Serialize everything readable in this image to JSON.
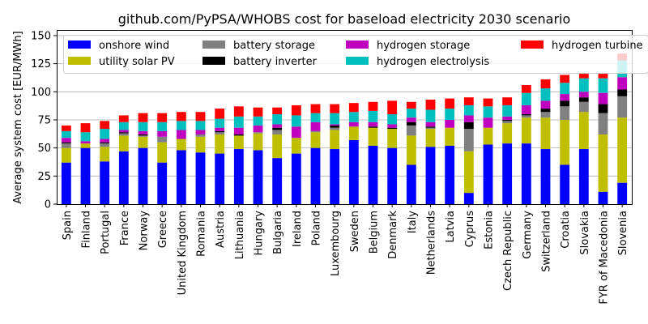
{
  "chart_data": {
    "type": "bar",
    "stacked": true,
    "title": "github.com/PyPSA/WHOBS cost for baseload electricity 2030 scenario",
    "xlabel": "",
    "ylabel": "Average system cost [EUR/MWh]",
    "ylim": [
      0,
      155
    ],
    "yticks": [
      0,
      25,
      50,
      75,
      100,
      125,
      150
    ],
    "grid": "horizontal",
    "legend_position": "top",
    "categories": [
      "Spain",
      "Finland",
      "Portugal",
      "France",
      "Norway",
      "Greece",
      "United Kingdom",
      "Romania",
      "Austria",
      "Lithuania",
      "Hungary",
      "Bulgaria",
      "Ireland",
      "Poland",
      "Luxembourg",
      "Sweden",
      "Belgium",
      "Denmark",
      "Italy",
      "Netherlands",
      "Latvia",
      "Cyprus",
      "Estonia",
      "Czech Republic",
      "Germany",
      "Switzerland",
      "Croatia",
      "Slovakia",
      "FYR of Macedonia",
      "Slovenia"
    ],
    "series": [
      {
        "name": "onshore wind",
        "color": "#0000ff",
        "values": [
          37,
          50,
          38,
          47,
          50,
          37,
          48,
          46,
          45,
          49,
          48,
          41,
          45,
          50,
          49,
          57,
          52,
          50,
          35,
          51,
          52,
          10,
          53,
          54,
          54,
          49,
          35,
          49,
          11,
          19
        ]
      },
      {
        "name": "utility solar PV",
        "color": "#bfbf00",
        "values": [
          13,
          4,
          13,
          14,
          10,
          18,
          10,
          14,
          17,
          12,
          15,
          21,
          14,
          14,
          17,
          12,
          16,
          17,
          26,
          16,
          16,
          37,
          15,
          18,
          23,
          28,
          40,
          33,
          51,
          58
        ]
      },
      {
        "name": "battery storage",
        "color": "#808080",
        "values": [
          4,
          0,
          3,
          2,
          1,
          5,
          0,
          2,
          2,
          0,
          1,
          4,
          0,
          1,
          2,
          0,
          0,
          0,
          9,
          1,
          0,
          20,
          0,
          2,
          2,
          5,
          12,
          9,
          19,
          19
        ]
      },
      {
        "name": "battery inverter",
        "color": "#000000",
        "values": [
          1,
          0,
          1,
          1,
          1,
          0,
          0,
          0,
          1,
          1,
          0,
          2,
          0,
          0,
          2,
          0,
          1,
          1,
          3,
          1,
          0,
          6,
          0,
          1,
          1,
          3,
          5,
          4,
          8,
          6
        ]
      },
      {
        "name": "hydrogen storage",
        "color": "#bf00bf",
        "values": [
          4,
          2,
          3,
          2,
          3,
          5,
          8,
          4,
          3,
          6,
          6,
          3,
          10,
          8,
          1,
          4,
          4,
          3,
          4,
          4,
          7,
          6,
          9,
          3,
          8,
          7,
          6,
          5,
          10,
          11
        ]
      },
      {
        "name": "hydrogen electrolysis",
        "color": "#00bfbf",
        "values": [
          6,
          8,
          9,
          7,
          8,
          8,
          8,
          8,
          8,
          10,
          8,
          9,
          10,
          8,
          10,
          9,
          10,
          9,
          8,
          11,
          10,
          9,
          10,
          10,
          11,
          11,
          10,
          12,
          13,
          15
        ]
      },
      {
        "name": "hydrogen turbine",
        "color": "#ff0000",
        "values": [
          5,
          8,
          7,
          6,
          8,
          8,
          8,
          8,
          9,
          9,
          8,
          6,
          9,
          8,
          8,
          8,
          8,
          12,
          6,
          9,
          9,
          7,
          7,
          7,
          7,
          8,
          7,
          4,
          4,
          6
        ]
      }
    ]
  }
}
